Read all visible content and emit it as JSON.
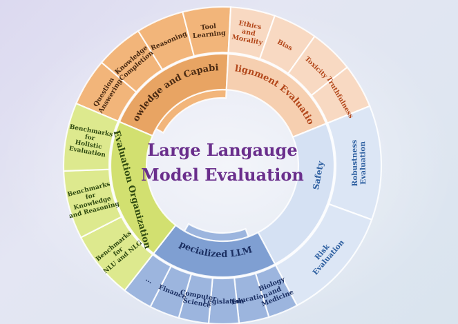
{
  "title_line1": "Large Langauge",
  "title_line2": "Model Evaluation",
  "colors": {
    "knowledge_outer": "#f2b57a",
    "knowledge_mid": "#e8a463",
    "knowledge_text": "#4a2a12",
    "alignment_outer": "#f8d9c2",
    "alignment_mid": "#f6cfb0",
    "alignment_text": "#b3471a",
    "organization_outer": "#dde98e",
    "organization_mid": "#d2e070",
    "organization_text": "#2f4a10",
    "specialized_outer": "#9cb5de",
    "specialized_mid": "#7f9fd2",
    "specialized_text": "#1b2f62",
    "safety_outer": "#dce6f5",
    "safety_mid": "#d5e1f3",
    "safety_text": "#2d5fa0",
    "title": "#6a2f8c"
  },
  "categories": [
    {
      "key": "knowledge",
      "label": "Knowledge and Capability",
      "items": [
        {
          "lines": [
            "Question",
            "Answering"
          ]
        },
        {
          "lines": [
            "Knowledge",
            "Completion"
          ]
        },
        {
          "lines": [
            "Reasoning"
          ]
        },
        {
          "lines": [
            "Tool",
            "Learning"
          ]
        }
      ]
    },
    {
      "key": "alignment",
      "label": "Alignment Evaluation",
      "items": [
        {
          "lines": [
            "Ethics",
            "and",
            "Morality"
          ]
        },
        {
          "lines": [
            "Bias"
          ]
        },
        {
          "lines": [
            "Toxicity"
          ]
        },
        {
          "lines": [
            "Truthfulness"
          ]
        }
      ]
    },
    {
      "key": "safety",
      "label": "Safety",
      "items": [
        {
          "lines": [
            "Robustness",
            "Evaluation"
          ]
        },
        {
          "lines": [
            "Risk",
            "Evaluation"
          ]
        }
      ]
    },
    {
      "key": "specialized",
      "label": "Specialized LLMs",
      "items": [
        {
          "lines": [
            "Biology",
            "and",
            "Medicine"
          ]
        },
        {
          "lines": [
            "Education"
          ]
        },
        {
          "lines": [
            "Legislation"
          ]
        },
        {
          "lines": [
            "Computer",
            "Science"
          ]
        },
        {
          "lines": [
            "Finance"
          ]
        },
        {
          "lines": [
            "..."
          ]
        }
      ]
    },
    {
      "key": "organization",
      "label": "Evaluation Organization",
      "items": [
        {
          "lines": [
            "Benchmarks",
            "for",
            "NLU and NLG"
          ]
        },
        {
          "lines": [
            "Benchmarks",
            "for",
            "Knowledge",
            "and Reasoning"
          ]
        },
        {
          "lines": [
            "Benchmarks",
            "for",
            "Holistic",
            "Evaluation"
          ]
        }
      ]
    }
  ]
}
